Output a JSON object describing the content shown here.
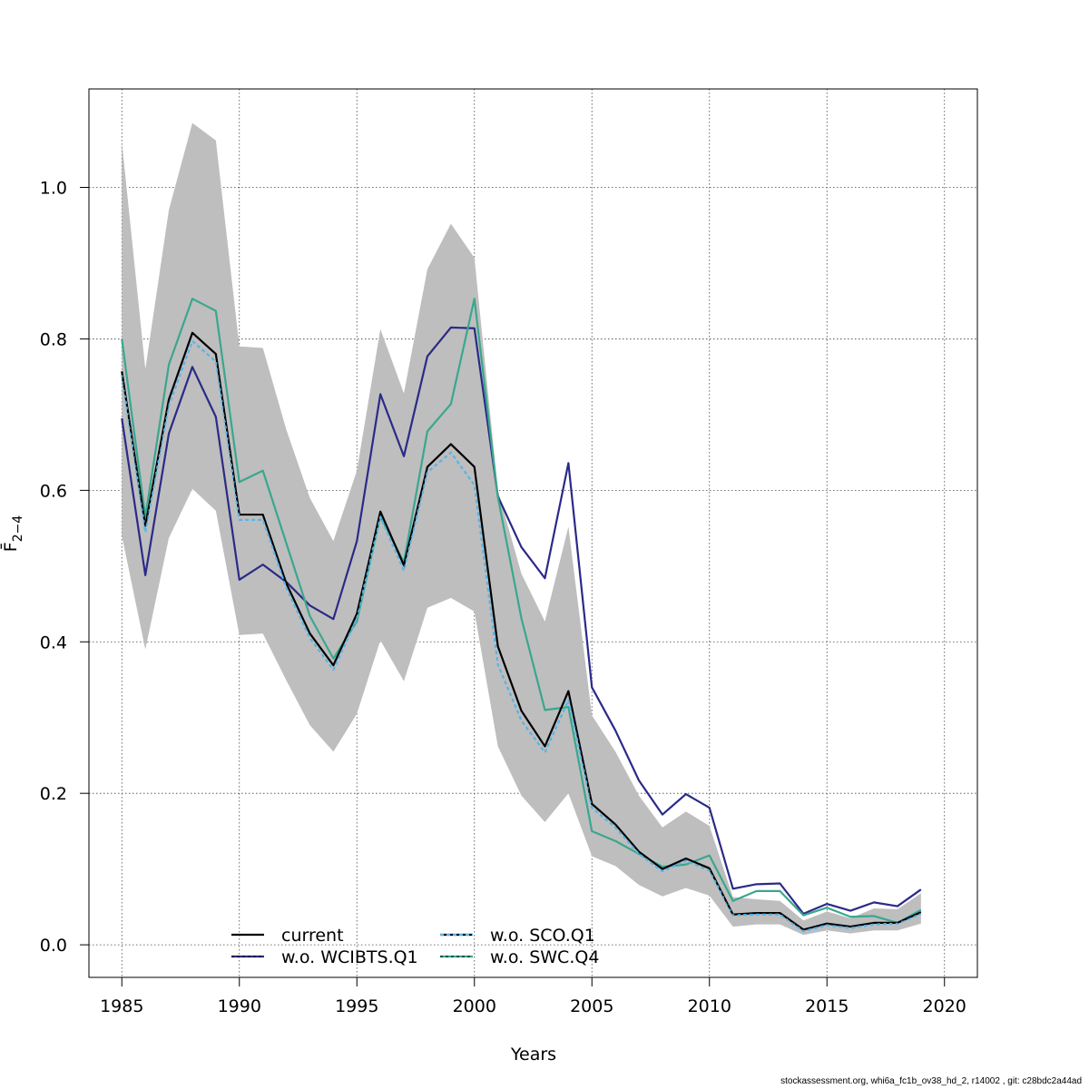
{
  "chart_data": {
    "type": "line",
    "title": "",
    "xlabel": "Years",
    "ylabel": "F̄",
    "ylabel_sub": "2−4",
    "xlim": [
      1983.6,
      2021.4
    ],
    "ylim": [
      -0.043,
      1.13
    ],
    "x_ticks": [
      1985,
      1990,
      1995,
      2000,
      2005,
      2010,
      2015,
      2020
    ],
    "y_ticks": [
      0.0,
      0.2,
      0.4,
      0.6,
      0.8,
      1.0
    ],
    "y_tick_labels": [
      "0.0",
      "0.2",
      "0.4",
      "0.6",
      "0.8",
      "1.0"
    ],
    "grid": true,
    "legend_position": "bottom",
    "x": [
      1985,
      1986,
      1987,
      1988,
      1989,
      1990,
      1991,
      1992,
      1993,
      1994,
      1995,
      1996,
      1997,
      1998,
      1999,
      2000,
      2001,
      2002,
      2003,
      2004,
      2005,
      2006,
      2007,
      2008,
      2009,
      2010,
      2011,
      2012,
      2013,
      2014,
      2015,
      2016,
      2017,
      2018,
      2019
    ],
    "band": {
      "color": "#bebebe",
      "upper": [
        1.06,
        0.76,
        0.97,
        1.085,
        1.062,
        0.79,
        0.788,
        0.68,
        0.59,
        0.533,
        0.626,
        0.813,
        0.728,
        0.892,
        0.952,
        0.907,
        0.6,
        0.49,
        0.427,
        0.552,
        0.303,
        0.255,
        0.197,
        0.155,
        0.176,
        0.157,
        0.063,
        0.06,
        0.058,
        0.032,
        0.044,
        0.035,
        0.048,
        0.047,
        0.068
      ],
      "lower": [
        0.54,
        0.39,
        0.537,
        0.602,
        0.573,
        0.409,
        0.411,
        0.349,
        0.29,
        0.255,
        0.305,
        0.402,
        0.348,
        0.445,
        0.458,
        0.44,
        0.262,
        0.197,
        0.162,
        0.2,
        0.117,
        0.104,
        0.079,
        0.064,
        0.075,
        0.065,
        0.024,
        0.027,
        0.027,
        0.013,
        0.019,
        0.015,
        0.019,
        0.019,
        0.028
      ]
    },
    "series": [
      {
        "name": "current",
        "color": "#000000",
        "dash": "",
        "values": [
          0.757,
          0.553,
          0.72,
          0.808,
          0.78,
          0.568,
          0.568,
          0.477,
          0.411,
          0.369,
          0.437,
          0.572,
          0.501,
          0.631,
          0.661,
          0.631,
          0.394,
          0.309,
          0.262,
          0.335,
          0.186,
          0.159,
          0.123,
          0.1,
          0.114,
          0.101,
          0.04,
          0.042,
          0.042,
          0.02,
          0.028,
          0.024,
          0.029,
          0.029,
          0.043
        ]
      },
      {
        "name": "w.o. WCIBTS.Q1",
        "color": "#2a2a88",
        "dash": "",
        "values": [
          0.695,
          0.488,
          0.675,
          0.763,
          0.697,
          0.482,
          0.502,
          0.479,
          0.448,
          0.43,
          0.533,
          0.727,
          0.645,
          0.777,
          0.815,
          0.814,
          0.592,
          0.525,
          0.484,
          0.636,
          0.34,
          0.283,
          0.217,
          0.172,
          0.199,
          0.181,
          0.074,
          0.08,
          0.081,
          0.041,
          0.054,
          0.045,
          0.056,
          0.051,
          0.073
        ]
      },
      {
        "name": "w.o. SCO.Q1",
        "color": "#56b4e9",
        "dash": "4 3",
        "values": [
          0.752,
          0.545,
          0.712,
          0.797,
          0.77,
          0.561,
          0.561,
          0.471,
          0.405,
          0.363,
          0.431,
          0.565,
          0.494,
          0.624,
          0.65,
          0.607,
          0.37,
          0.296,
          0.254,
          0.323,
          0.181,
          0.155,
          0.12,
          0.097,
          0.111,
          0.098,
          0.039,
          0.04,
          0.04,
          0.018,
          0.026,
          0.022,
          0.027,
          0.028,
          0.041
        ]
      },
      {
        "name": "w.o. SWC.Q4",
        "color": "#3aa78d",
        "dash": "",
        "values": [
          0.8,
          0.565,
          0.766,
          0.853,
          0.837,
          0.611,
          0.626,
          0.53,
          0.434,
          0.378,
          0.427,
          0.566,
          0.505,
          0.678,
          0.714,
          0.853,
          0.591,
          0.431,
          0.31,
          0.314,
          0.15,
          0.137,
          0.12,
          0.103,
          0.106,
          0.118,
          0.058,
          0.071,
          0.071,
          0.039,
          0.049,
          0.037,
          0.038,
          0.029,
          0.046
        ]
      }
    ]
  },
  "footer": "stockassessment.org, whi6a_fc1b_ov38_hd_2, r14002 , git: c28bdc2a44ad"
}
